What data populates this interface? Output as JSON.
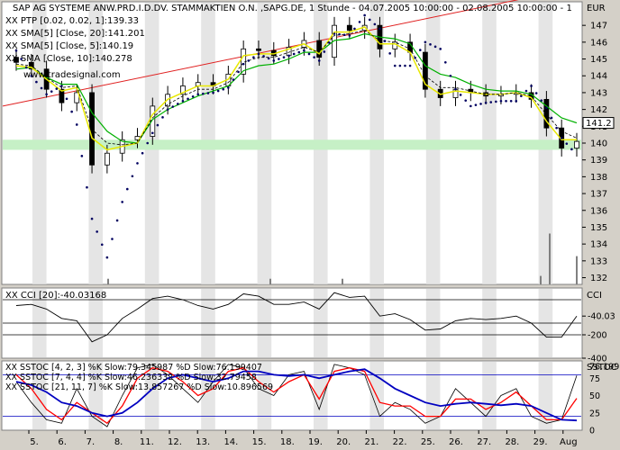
{
  "chart_data": [
    {
      "type": "line",
      "title": "SAP AG SYSTEME ANW.PRD.I.D.DV. STAMMAKTIEN O.N. ,SAPG.DE, 1 Stunde - 04.07.2005 10:00:00 - 02.08.2005 10:00:00 - 1",
      "currency": "EUR",
      "watermark": "www.tradesignal.com",
      "legend": [
        {
          "text": "XX PTP [0.02, 0.02, 1]:139.33",
          "color": "#000000"
        },
        {
          "text": "XX SMA[5] [Close, 20]:141.201",
          "color": "#00c000"
        },
        {
          "text": "XX SMA[5] [Close, 5]:140.19",
          "color": "#e8e800"
        },
        {
          "text": "XX SMA [Close, 10]:140.278",
          "color": "#000000"
        }
      ],
      "x_labels": [
        "5.",
        "6.",
        "7.",
        "8.",
        "11.",
        "12.",
        "13.",
        "14.",
        "15.",
        "18.",
        "19.",
        "20.",
        "21.",
        "22.",
        "25.",
        "26.",
        "27.",
        "28.",
        "29.",
        "Aug"
      ],
      "y_ticks": [
        147,
        146,
        145,
        144,
        143,
        142,
        141,
        140,
        139,
        138,
        137,
        136,
        135,
        134,
        133,
        132
      ],
      "ylim": [
        131.6,
        148.4
      ],
      "last_price": "141.2",
      "support_band": [
        139.6,
        140.2
      ],
      "trendline": {
        "start": 142.2,
        "end": 149.3
      },
      "series": [
        {
          "name": "Close",
          "values": [
            144.8,
            144.4,
            143.2,
            142.4,
            143.0,
            138.7,
            139.4,
            140.2,
            140.4,
            142.2,
            142.9,
            143.4,
            143.6,
            143.4,
            144.1,
            145.6,
            145.5,
            145.2,
            145.7,
            146.1,
            145.1,
            147.0,
            146.7,
            147.0,
            145.6,
            146.0,
            145.4,
            143.2,
            142.7,
            143.2,
            143.0,
            142.8,
            142.9,
            143.0,
            142.6,
            140.9,
            139.7,
            140.1
          ]
        },
        {
          "name": "PTP",
          "values": [
            145.5,
            144.0,
            142.9,
            143.4,
            141.1,
            135.5,
            133.2,
            136.5,
            138.8,
            140.6,
            142.0,
            142.5,
            142.9,
            143.0,
            143.3,
            144.7,
            145.3,
            144.9,
            145.2,
            145.5,
            144.9,
            146.5,
            146.4,
            147.6,
            146.8,
            144.6,
            144.6,
            146.0,
            145.6,
            143.2,
            142.2,
            142.4,
            142.5,
            142.5,
            143.4,
            142.1,
            140.3,
            139.3
          ]
        },
        {
          "name": "SMA 20",
          "values": [
            144.4,
            144.5,
            143.9,
            143.5,
            143.5,
            141.8,
            140.7,
            140.1,
            140.0,
            141.4,
            142.0,
            142.4,
            142.8,
            143.1,
            143.4,
            144.3,
            144.6,
            144.7,
            145.0,
            145.4,
            145.4,
            146.1,
            146.2,
            146.5,
            146.3,
            146.2,
            145.9,
            144.6,
            144.1,
            143.9,
            143.5,
            143.2,
            143.1,
            143.1,
            142.9,
            142.2,
            141.5,
            141.2
          ]
        },
        {
          "name": "SMA 5",
          "values": [
            144.6,
            144.5,
            143.8,
            143.1,
            143.3,
            140.3,
            139.6,
            139.8,
            140.0,
            141.7,
            142.6,
            143.0,
            143.4,
            143.4,
            143.8,
            145.2,
            145.3,
            145.3,
            145.6,
            145.9,
            145.3,
            146.6,
            146.6,
            146.9,
            145.9,
            145.9,
            145.4,
            143.5,
            142.9,
            143.1,
            143.0,
            142.9,
            142.9,
            143.0,
            142.7,
            141.3,
            140.2,
            140.2
          ]
        },
        {
          "name": "SMA 10",
          "values": [
            144.7,
            144.6,
            143.9,
            143.3,
            143.4,
            140.8,
            140.0,
            139.9,
            140.0,
            141.5,
            142.3,
            142.8,
            143.2,
            143.2,
            143.6,
            144.8,
            145.1,
            145.1,
            145.4,
            145.7,
            145.4,
            146.4,
            146.5,
            146.7,
            146.1,
            146.0,
            145.6,
            144.0,
            143.3,
            143.3,
            143.1,
            142.9,
            142.9,
            143.0,
            142.8,
            141.7,
            140.7,
            140.3
          ]
        }
      ]
    },
    {
      "type": "line",
      "title": "XX CCI [20]:-40.03168",
      "label": "CCI",
      "y_ticks": [
        "-40.03",
        "-200",
        "-400"
      ],
      "reference_lines": [
        100,
        -100,
        -200
      ],
      "ylim": [
        -400,
        200
      ],
      "series": [
        {
          "name": "CCI",
          "values": [
            50,
            60,
            20,
            -60,
            -80,
            -260,
            -200,
            -60,
            20,
            110,
            130,
            100,
            50,
            20,
            60,
            150,
            130,
            60,
            60,
            80,
            20,
            160,
            120,
            130,
            -40,
            -20,
            -70,
            -160,
            -150,
            -80,
            -60,
            -70,
            -60,
            -40,
            -100,
            -220,
            -220,
            -40
          ]
        }
      ]
    },
    {
      "type": "line",
      "title": "XX SSTOC [4, 2, 3] %K Slow:79.345987 %D Slow:76.199407",
      "label": "SSTOC",
      "legend": [
        {
          "text": "XX SSTOC [4, 2, 3] %K Slow:79.345987 %D Slow:76.199407",
          "color": "#000000"
        },
        {
          "text": "XX SSTOC [7, 4, 4] %K Slow:46.236332 %D Slow:32.79458",
          "color": "#ff0000"
        },
        {
          "text": "XX SSTOC [21, 11, 7] %K Slow:13.857267 %D Slow:10.896569",
          "color": "#0000c0"
        }
      ],
      "y_ticks": [
        "76.199",
        "75",
        "50",
        "25",
        "0"
      ],
      "reference_lines": [
        80,
        20
      ],
      "ylim": [
        0,
        100
      ],
      "series": [
        {
          "name": "SSTOC 4,2,3",
          "values": [
            70,
            40,
            15,
            10,
            60,
            20,
            5,
            50,
            90,
            95,
            80,
            60,
            40,
            70,
            95,
            90,
            60,
            50,
            80,
            85,
            30,
            95,
            90,
            80,
            20,
            40,
            30,
            10,
            20,
            60,
            40,
            20,
            50,
            60,
            20,
            10,
            15,
            79
          ]
        },
        {
          "name": "SSTOC 7,4,4",
          "values": [
            80,
            60,
            30,
            15,
            40,
            25,
            10,
            35,
            75,
            90,
            85,
            70,
            50,
            60,
            85,
            90,
            70,
            55,
            70,
            80,
            45,
            85,
            90,
            85,
            40,
            35,
            35,
            20,
            20,
            45,
            45,
            30,
            40,
            55,
            35,
            15,
            15,
            46
          ]
        },
        {
          "name": "SSTOC 21,11,7",
          "values": [
            70,
            65,
            55,
            40,
            35,
            25,
            20,
            25,
            40,
            60,
            75,
            80,
            75,
            70,
            75,
            85,
            85,
            80,
            78,
            80,
            75,
            80,
            85,
            88,
            75,
            60,
            50,
            40,
            35,
            38,
            40,
            38,
            36,
            38,
            35,
            25,
            15,
            14
          ]
        }
      ]
    }
  ]
}
